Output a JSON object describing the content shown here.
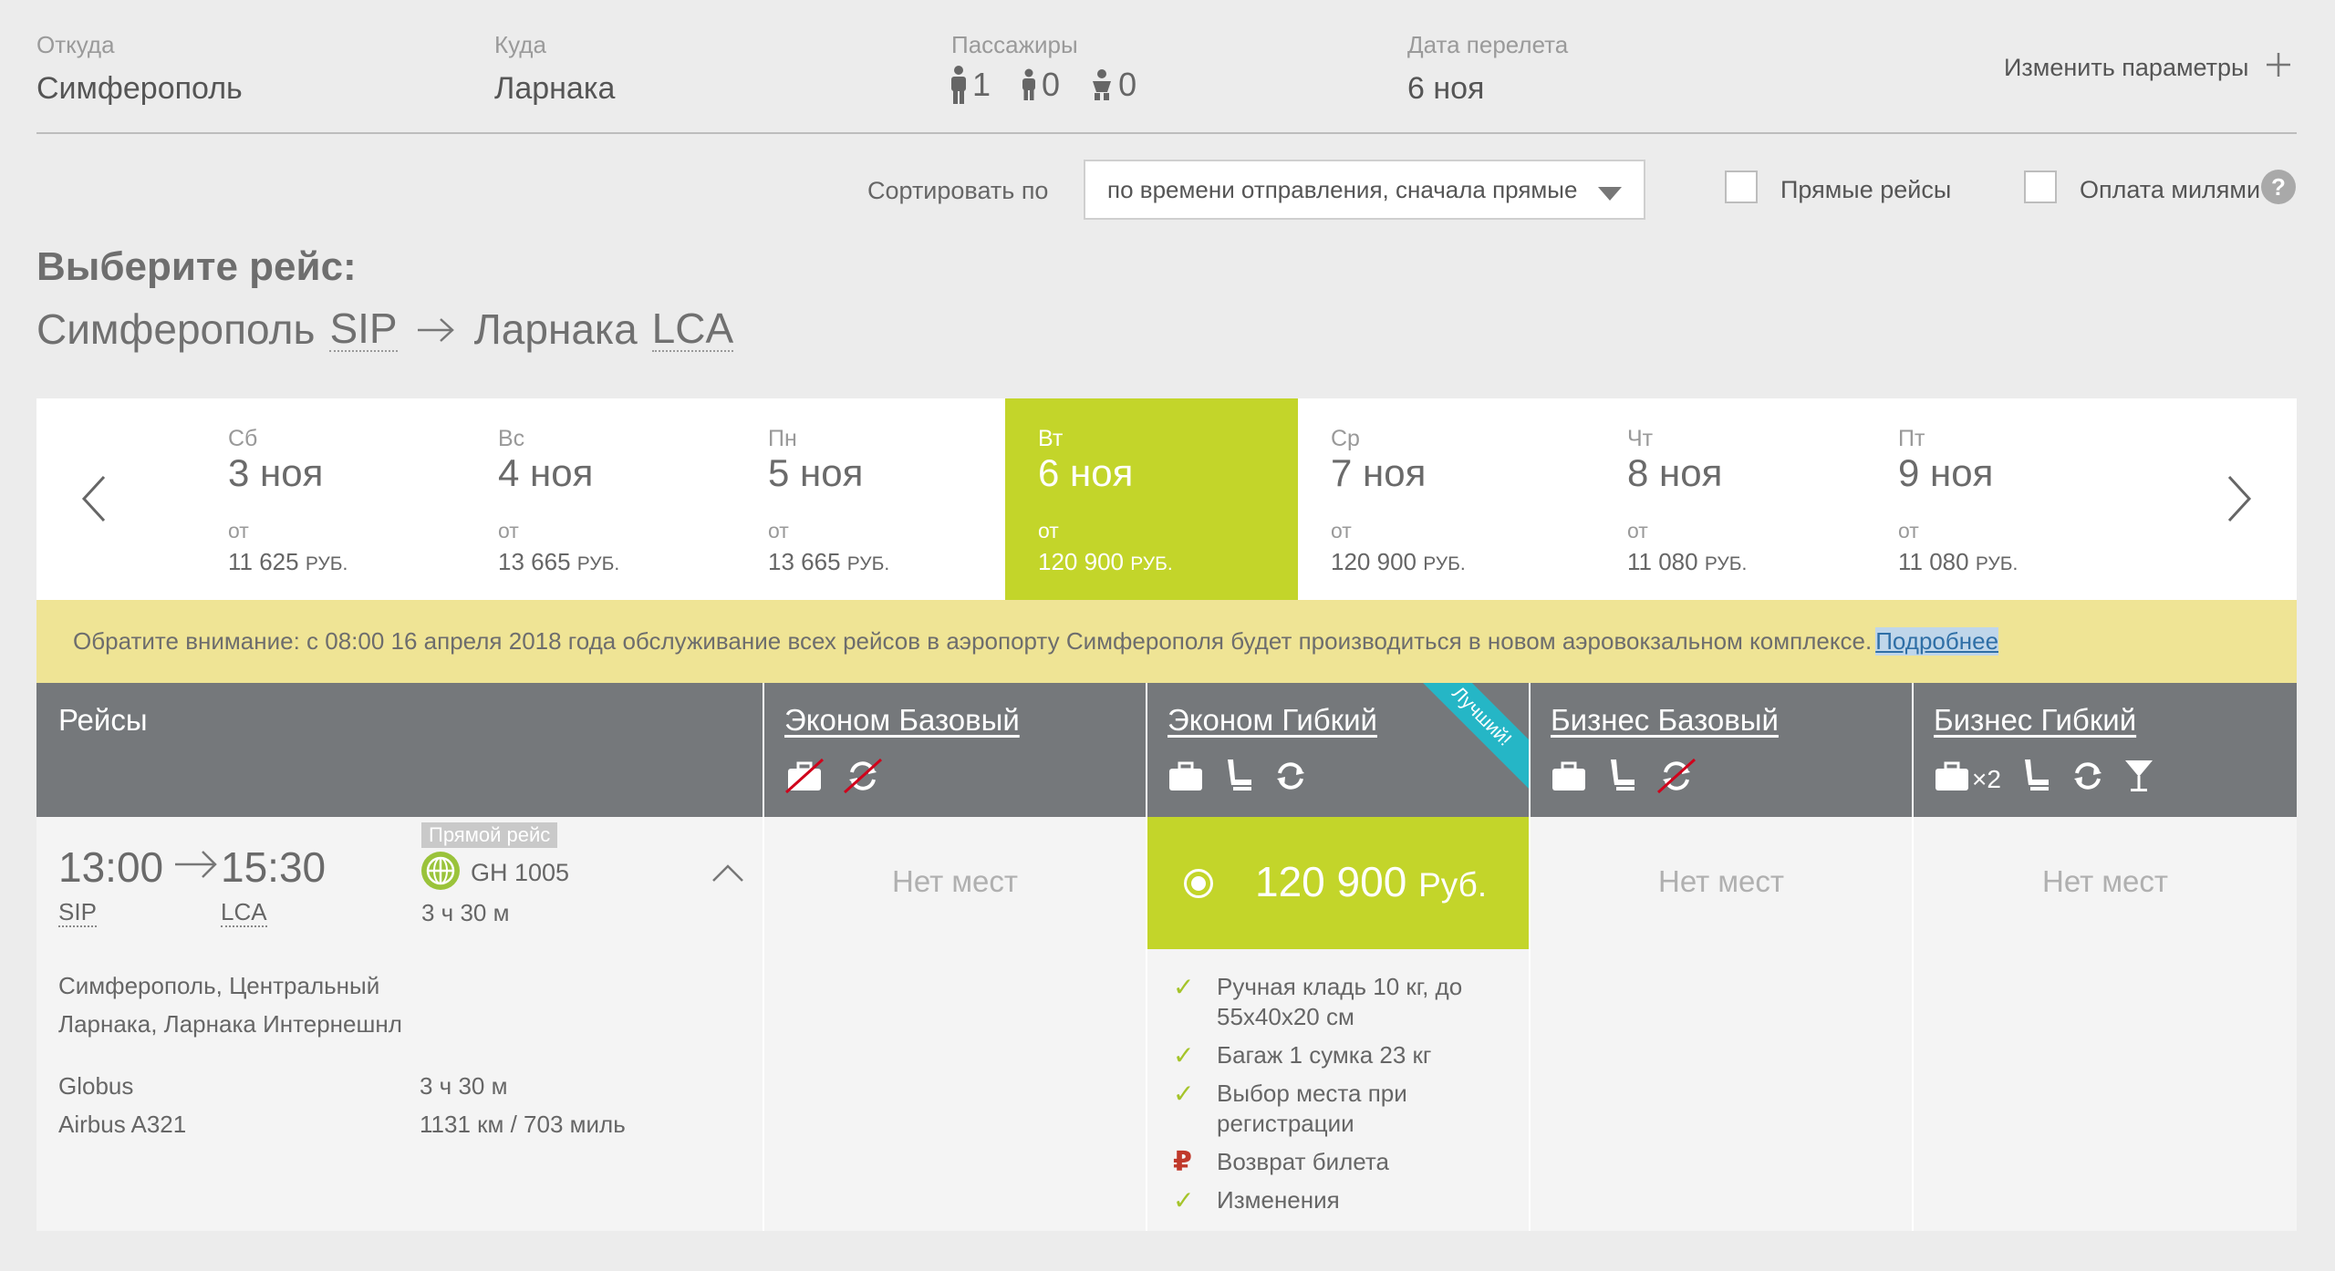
{
  "search": {
    "from_label": "Откуда",
    "from_value": "Симферополь",
    "to_label": "Куда",
    "to_value": "Ларнака",
    "passengers_label": "Пассажиры",
    "adults": "1",
    "children": "0",
    "infants": "0",
    "date_label": "Дата перелета",
    "date_value": "6 ноя",
    "change_params": "Изменить параметры"
  },
  "filters": {
    "sort_label": "Сортировать по",
    "sort_value": "по времени отправления, сначала прямые",
    "direct_label": "Прямые рейсы",
    "miles_label": "Оплата милями",
    "help": "?"
  },
  "heading": {
    "choose": "Выберите рейс:",
    "from_city": "Симферополь",
    "from_code": "SIP",
    "to_city": "Ларнака",
    "to_code": "LCA"
  },
  "dates": [
    {
      "dow": "Сб",
      "date": "3 ноя",
      "from": "от",
      "price": "11 625",
      "cur": "РУБ."
    },
    {
      "dow": "Вс",
      "date": "4 ноя",
      "from": "от",
      "price": "13 665",
      "cur": "РУБ."
    },
    {
      "dow": "Пн",
      "date": "5 ноя",
      "from": "от",
      "price": "13 665",
      "cur": "РУБ."
    },
    {
      "dow": "Вт",
      "date": "6 ноя",
      "from": "от",
      "price": "120 900",
      "cur": "РУБ."
    },
    {
      "dow": "Ср",
      "date": "7 ноя",
      "from": "от",
      "price": "120 900",
      "cur": "РУБ."
    },
    {
      "dow": "Чт",
      "date": "8 ноя",
      "from": "от",
      "price": "11 080",
      "cur": "РУБ."
    },
    {
      "dow": "Пт",
      "date": "9 ноя",
      "from": "от",
      "price": "11 080",
      "cur": "РУБ."
    }
  ],
  "notice": {
    "text": "Обратите внимание: с 08:00 16 апреля 2018 года обслуживание всех рейсов в аэропорту Симферополя будет производиться в новом аэровокзальном комплексе.",
    "link": "Подробнее"
  },
  "table": {
    "flights_header": "Рейсы",
    "fares": [
      {
        "name": "Эконом Базовый"
      },
      {
        "name": "Эконом Гибкий",
        "ribbon": "Лучший!"
      },
      {
        "name": "Бизнес Базовый"
      },
      {
        "name": "Бизнес Гибкий",
        "baggage_mult": "×2"
      }
    ],
    "no_seats": "Нет мест"
  },
  "flight": {
    "dep_time": "13:00",
    "arr_time": "15:30",
    "dep_code": "SIP",
    "arr_code": "LCA",
    "badge": "Прямой рейс",
    "number": "GH 1005",
    "duration": "3 ч 30 м",
    "dep_airport": "Симферополь, Центральный",
    "arr_airport": "Ларнака, Ларнака Интернешнл",
    "airline": "Globus",
    "aircraft": "Airbus A321",
    "duration_detail": "3 ч 30 м",
    "distance": "1131 км / 703 миль"
  },
  "selected_fare": {
    "amount": "120 900",
    "currency": "Руб.",
    "features": [
      {
        "icon": "check-icon",
        "text": "Ручная кладь 10 кг, до 55x40x20 см"
      },
      {
        "icon": "check-icon",
        "text": "Багаж 1 сумка 23 кг"
      },
      {
        "icon": "check-icon",
        "text": "Выбор места при регистрации"
      },
      {
        "icon": "ruble-icon",
        "text": "Возврат билета"
      },
      {
        "icon": "check-icon",
        "text": "Изменения"
      }
    ]
  },
  "colors": {
    "accent_green": "#c3d52a",
    "notice_yellow": "#efe495",
    "header_gray": "#75787b",
    "ribbon_teal": "#25b6c6"
  }
}
